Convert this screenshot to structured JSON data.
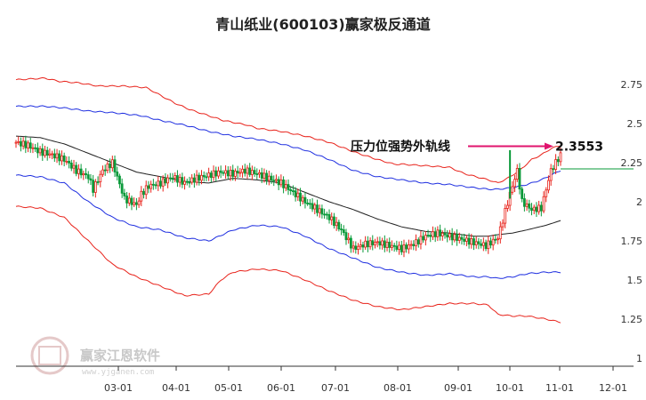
{
  "chart_data": {
    "type": "line",
    "title": "青山纸业(600103)赢家极反通道",
    "xlabel": "",
    "ylabel": "",
    "x_ticks": [
      "03-01",
      "04-01",
      "05-01",
      "06-01",
      "07-01",
      "08-01",
      "09-01",
      "10-01",
      "11-01",
      "12-01"
    ],
    "y_ticks": [
      1,
      1.25,
      1.5,
      1.75,
      2,
      2.25,
      2.5,
      2.75
    ],
    "ylim": [
      1,
      2.9
    ],
    "grid": false,
    "annotation": {
      "label": "压力位强势外轨线",
      "value_text": "2.3553",
      "value": 2.3553,
      "arrow_color": "#e0146e"
    },
    "colors": {
      "outer_band": "#e8221a",
      "inner_band": "#1f2fe0",
      "middle_line": "#222222",
      "candle_up": "#e8221a",
      "candle_down": "#0a9a3a",
      "ref_line": "#0a9a3a"
    },
    "series": [
      {
        "role": "outer_upper",
        "values": [
          [
            0,
            2.78
          ],
          [
            12,
            2.79
          ],
          [
            18,
            2.77
          ],
          [
            26,
            2.76
          ],
          [
            34,
            2.74
          ],
          [
            44,
            2.74
          ],
          [
            54,
            2.73
          ],
          [
            60,
            2.68
          ],
          [
            66,
            2.63
          ],
          [
            72,
            2.59
          ],
          [
            80,
            2.55
          ],
          [
            86,
            2.52
          ],
          [
            96,
            2.49
          ],
          [
            100,
            2.47
          ],
          [
            110,
            2.45
          ],
          [
            120,
            2.42
          ],
          [
            130,
            2.38
          ],
          [
            140,
            2.32
          ],
          [
            150,
            2.27
          ],
          [
            157,
            2.24
          ],
          [
            160,
            2.24
          ],
          [
            170,
            2.23
          ],
          [
            180,
            2.22
          ],
          [
            186,
            2.18
          ],
          [
            196,
            2.14
          ],
          [
            200,
            2.12
          ],
          [
            204,
            2.15
          ],
          [
            209,
            2.2
          ],
          [
            214,
            2.27
          ],
          [
            218,
            2.3
          ],
          [
            222,
            2.34
          ],
          [
            226,
            2.36
          ]
        ]
      },
      {
        "role": "inner_upper",
        "values": [
          [
            0,
            2.61
          ],
          [
            12,
            2.61
          ],
          [
            20,
            2.6
          ],
          [
            30,
            2.58
          ],
          [
            40,
            2.57
          ],
          [
            52,
            2.55
          ],
          [
            60,
            2.52
          ],
          [
            70,
            2.49
          ],
          [
            80,
            2.45
          ],
          [
            90,
            2.42
          ],
          [
            100,
            2.4
          ],
          [
            110,
            2.37
          ],
          [
            120,
            2.33
          ],
          [
            130,
            2.27
          ],
          [
            140,
            2.2
          ],
          [
            150,
            2.16
          ],
          [
            160,
            2.14
          ],
          [
            170,
            2.12
          ],
          [
            180,
            2.11
          ],
          [
            190,
            2.09
          ],
          [
            196,
            2.08
          ],
          [
            200,
            2.08
          ],
          [
            206,
            2.09
          ],
          [
            212,
            2.11
          ],
          [
            218,
            2.14
          ],
          [
            226,
            2.2
          ]
        ]
      },
      {
        "role": "middle",
        "values": [
          [
            0,
            2.42
          ],
          [
            10,
            2.41
          ],
          [
            20,
            2.37
          ],
          [
            30,
            2.31
          ],
          [
            40,
            2.25
          ],
          [
            50,
            2.19
          ],
          [
            60,
            2.16
          ],
          [
            70,
            2.13
          ],
          [
            80,
            2.12
          ],
          [
            90,
            2.15
          ],
          [
            100,
            2.14
          ],
          [
            110,
            2.12
          ],
          [
            120,
            2.06
          ],
          [
            130,
            2.0
          ],
          [
            140,
            1.95
          ],
          [
            150,
            1.89
          ],
          [
            160,
            1.84
          ],
          [
            170,
            1.81
          ],
          [
            180,
            1.8
          ],
          [
            190,
            1.78
          ],
          [
            196,
            1.78
          ],
          [
            200,
            1.79
          ],
          [
            206,
            1.8
          ],
          [
            212,
            1.82
          ],
          [
            220,
            1.85
          ],
          [
            226,
            1.88
          ]
        ]
      },
      {
        "role": "inner_lower",
        "values": [
          [
            0,
            2.17
          ],
          [
            10,
            2.16
          ],
          [
            20,
            2.12
          ],
          [
            30,
            2.0
          ],
          [
            40,
            1.9
          ],
          [
            50,
            1.84
          ],
          [
            60,
            1.82
          ],
          [
            70,
            1.77
          ],
          [
            80,
            1.75
          ],
          [
            90,
            1.82
          ],
          [
            100,
            1.85
          ],
          [
            110,
            1.84
          ],
          [
            120,
            1.78
          ],
          [
            130,
            1.7
          ],
          [
            140,
            1.64
          ],
          [
            150,
            1.58
          ],
          [
            160,
            1.55
          ],
          [
            170,
            1.53
          ],
          [
            180,
            1.54
          ],
          [
            190,
            1.52
          ],
          [
            196,
            1.52
          ],
          [
            200,
            1.51
          ],
          [
            206,
            1.52
          ],
          [
            212,
            1.54
          ],
          [
            220,
            1.55
          ],
          [
            226,
            1.55
          ]
        ]
      },
      {
        "role": "outer_lower",
        "values": [
          [
            0,
            1.97
          ],
          [
            10,
            1.96
          ],
          [
            20,
            1.9
          ],
          [
            30,
            1.75
          ],
          [
            40,
            1.6
          ],
          [
            50,
            1.52
          ],
          [
            60,
            1.46
          ],
          [
            70,
            1.4
          ],
          [
            80,
            1.41
          ],
          [
            85,
            1.5
          ],
          [
            90,
            1.55
          ],
          [
            100,
            1.57
          ],
          [
            110,
            1.56
          ],
          [
            120,
            1.5
          ],
          [
            130,
            1.43
          ],
          [
            140,
            1.37
          ],
          [
            150,
            1.33
          ],
          [
            160,
            1.31
          ],
          [
            170,
            1.33
          ],
          [
            180,
            1.35
          ],
          [
            190,
            1.35
          ],
          [
            196,
            1.34
          ],
          [
            200,
            1.28
          ],
          [
            206,
            1.27
          ],
          [
            212,
            1.27
          ],
          [
            220,
            1.25
          ],
          [
            226,
            1.23
          ]
        ]
      },
      {
        "role": "close",
        "values": [
          [
            0,
            2.38
          ],
          [
            5,
            2.36
          ],
          [
            10,
            2.32
          ],
          [
            15,
            2.3
          ],
          [
            20,
            2.27
          ],
          [
            25,
            2.2
          ],
          [
            30,
            2.16
          ],
          [
            32,
            2.08
          ],
          [
            36,
            2.2
          ],
          [
            40,
            2.25
          ],
          [
            45,
            2.02
          ],
          [
            50,
            1.98
          ],
          [
            52,
            2.05
          ],
          [
            55,
            2.1
          ],
          [
            60,
            2.12
          ],
          [
            65,
            2.16
          ],
          [
            70,
            2.12
          ],
          [
            75,
            2.15
          ],
          [
            80,
            2.17
          ],
          [
            85,
            2.19
          ],
          [
            90,
            2.18
          ],
          [
            95,
            2.2
          ],
          [
            100,
            2.18
          ],
          [
            105,
            2.15
          ],
          [
            110,
            2.12
          ],
          [
            115,
            2.06
          ],
          [
            120,
            2.0
          ],
          [
            125,
            1.95
          ],
          [
            130,
            1.9
          ],
          [
            135,
            1.82
          ],
          [
            140,
            1.7
          ],
          [
            145,
            1.73
          ],
          [
            150,
            1.74
          ],
          [
            155,
            1.72
          ],
          [
            160,
            1.7
          ],
          [
            165,
            1.73
          ],
          [
            170,
            1.78
          ],
          [
            175,
            1.8
          ],
          [
            180,
            1.78
          ],
          [
            185,
            1.76
          ],
          [
            190,
            1.74
          ],
          [
            195,
            1.72
          ],
          [
            200,
            1.77
          ],
          [
            205,
            2.05
          ],
          [
            208,
            2.2
          ],
          [
            210,
            2.0
          ],
          [
            214,
            1.95
          ],
          [
            218,
            1.96
          ],
          [
            222,
            2.2
          ],
          [
            226,
            2.3
          ]
        ]
      }
    ]
  }
}
